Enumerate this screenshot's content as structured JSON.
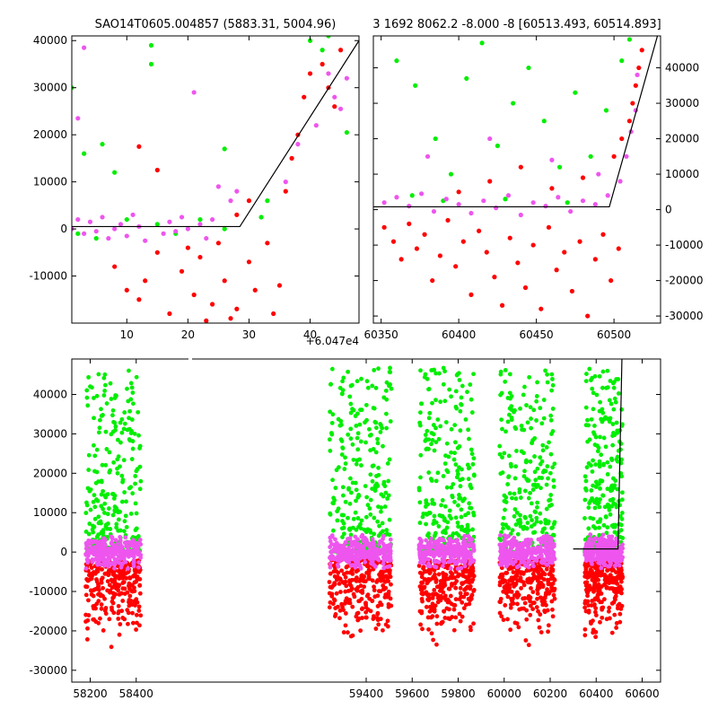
{
  "chart_data": [
    {
      "type": "scatter",
      "title": "SAO14T0605.004857 (5883.31, 5004.96)",
      "xlim": [
        1,
        48
      ],
      "ylim": [
        -20000,
        41000
      ],
      "xticks": [
        "10",
        "20",
        "30",
        "40"
      ],
      "yticks": [
        "-10000",
        "0",
        "10000",
        "20000",
        "30000",
        "40000"
      ],
      "offset_label": "+6.047e4",
      "model_line": {
        "x": [
          1,
          28.5,
          48
        ],
        "y": [
          500,
          500,
          40000
        ]
      },
      "series": [
        {
          "color": "#ff0000",
          "points": [
            [
              8,
              -8000
            ],
            [
              10,
              -13000
            ],
            [
              12,
              -15000
            ],
            [
              13,
              -11000
            ],
            [
              15,
              -5000
            ],
            [
              17,
              -18000
            ],
            [
              19,
              -9000
            ],
            [
              21,
              -14000
            ],
            [
              22,
              -6000
            ],
            [
              24,
              -16000
            ],
            [
              26,
              -11000
            ],
            [
              28,
              -17000
            ],
            [
              30,
              -7000
            ],
            [
              31,
              -13000
            ],
            [
              33,
              -3000
            ],
            [
              35,
              -12000
            ],
            [
              28,
              3000
            ],
            [
              30,
              6000
            ],
            [
              25,
              -3000
            ],
            [
              20,
              -4000
            ],
            [
              36,
              8000
            ],
            [
              37,
              15000
            ],
            [
              38,
              20000
            ],
            [
              39,
              28000
            ],
            [
              40,
              33000
            ],
            [
              42,
              35000
            ],
            [
              43,
              30000
            ],
            [
              44,
              26000
            ],
            [
              45,
              38000
            ],
            [
              12,
              17500
            ],
            [
              15,
              12500
            ],
            [
              34,
              -18000
            ],
            [
              27,
              -19000
            ],
            [
              23,
              -19500
            ]
          ]
        },
        {
          "color": "#00ee00",
          "points": [
            [
              1,
              30000
            ],
            [
              3,
              16000
            ],
            [
              6,
              18000
            ],
            [
              8,
              12000
            ],
            [
              14,
              39000
            ],
            [
              14,
              35000
            ],
            [
              26,
              17000
            ],
            [
              40,
              40000
            ],
            [
              43,
              41000
            ],
            [
              46,
              20500
            ],
            [
              2,
              -1000
            ],
            [
              5,
              -2000
            ],
            [
              10,
              2000
            ],
            [
              15,
              1000
            ],
            [
              18,
              -1000
            ],
            [
              22,
              2000
            ],
            [
              26,
              0
            ],
            [
              32,
              2500
            ],
            [
              33,
              6000
            ],
            [
              42,
              38000
            ]
          ]
        },
        {
          "color": "#ee55ee",
          "points": [
            [
              2,
              23500
            ],
            [
              3,
              38500
            ],
            [
              1,
              0
            ],
            [
              2,
              2000
            ],
            [
              3,
              -1000
            ],
            [
              4,
              1500
            ],
            [
              5,
              -500
            ],
            [
              6,
              2500
            ],
            [
              7,
              -2000
            ],
            [
              8,
              0
            ],
            [
              9,
              1000
            ],
            [
              10,
              -1500
            ],
            [
              11,
              3000
            ],
            [
              12,
              500
            ],
            [
              13,
              -2500
            ],
            [
              16,
              -1000
            ],
            [
              17,
              1500
            ],
            [
              18,
              -500
            ],
            [
              19,
              2500
            ],
            [
              20,
              0
            ],
            [
              21,
              29000
            ],
            [
              22,
              1000
            ],
            [
              23,
              -2000
            ],
            [
              24,
              2000
            ],
            [
              25,
              9000
            ],
            [
              27,
              6000
            ],
            [
              28,
              8000
            ],
            [
              36,
              10000
            ],
            [
              38,
              18000
            ],
            [
              41,
              22000
            ],
            [
              43,
              33000
            ],
            [
              44,
              28000
            ],
            [
              45,
              25500
            ],
            [
              46,
              32000
            ]
          ]
        }
      ]
    },
    {
      "type": "scatter",
      "title": "3 1692 8062.2 -8.000 -8 [60513.493, 60514.893]",
      "xlim": [
        60345,
        60530
      ],
      "ylim": [
        -32000,
        49000
      ],
      "xticks": [
        "60350",
        "60400",
        "60450",
        "60500"
      ],
      "yticks": [
        "-30000",
        "-20000",
        "-10000",
        "0",
        "10000",
        "20000",
        "30000",
        "40000"
      ],
      "model_line": {
        "x": [
          60345,
          60497,
          60528
        ],
        "y": [
          800,
          800,
          49000
        ]
      },
      "series": [
        {
          "color": "#ff0000",
          "points": [
            [
              60352,
              -5000
            ],
            [
              60358,
              -9000
            ],
            [
              60363,
              -14000
            ],
            [
              60368,
              -4000
            ],
            [
              60373,
              -11000
            ],
            [
              60378,
              -7000
            ],
            [
              60383,
              -20000
            ],
            [
              60388,
              -13000
            ],
            [
              60393,
              -3000
            ],
            [
              60398,
              -16000
            ],
            [
              60403,
              -9000
            ],
            [
              60408,
              -24000
            ],
            [
              60413,
              -6000
            ],
            [
              60418,
              -12000
            ],
            [
              60423,
              -19000
            ],
            [
              60428,
              -27000
            ],
            [
              60433,
              -8000
            ],
            [
              60438,
              -15000
            ],
            [
              60443,
              -22000
            ],
            [
              60448,
              -10000
            ],
            [
              60453,
              -28000
            ],
            [
              60458,
              -5000
            ],
            [
              60463,
              -17000
            ],
            [
              60468,
              -12000
            ],
            [
              60473,
              -23000
            ],
            [
              60478,
              -9000
            ],
            [
              60483,
              -30000
            ],
            [
              60488,
              -14000
            ],
            [
              60493,
              -7000
            ],
            [
              60498,
              -20000
            ],
            [
              60503,
              -11000
            ],
            [
              60400,
              5000
            ],
            [
              60420,
              8000
            ],
            [
              60440,
              12000
            ],
            [
              60460,
              6000
            ],
            [
              60480,
              9000
            ],
            [
              60500,
              15000
            ],
            [
              60505,
              20000
            ],
            [
              60510,
              25000
            ],
            [
              60512,
              30000
            ],
            [
              60514,
              35000
            ],
            [
              60516,
              40000
            ],
            [
              60518,
              45000
            ]
          ]
        },
        {
          "color": "#00ee00",
          "points": [
            [
              60360,
              42000
            ],
            [
              60372,
              35000
            ],
            [
              60385,
              20000
            ],
            [
              60395,
              10000
            ],
            [
              60405,
              37000
            ],
            [
              60415,
              47000
            ],
            [
              60425,
              18000
            ],
            [
              60435,
              30000
            ],
            [
              60445,
              40000
            ],
            [
              60455,
              25000
            ],
            [
              60465,
              12000
            ],
            [
              60475,
              33000
            ],
            [
              60485,
              15000
            ],
            [
              60495,
              28000
            ],
            [
              60505,
              42000
            ],
            [
              60370,
              4000
            ],
            [
              60390,
              2500
            ],
            [
              60430,
              3000
            ],
            [
              60470,
              2000
            ],
            [
              60510,
              48000
            ]
          ]
        },
        {
          "color": "#ee55ee",
          "points": [
            [
              60352,
              2000
            ],
            [
              60360,
              3500
            ],
            [
              60368,
              1000
            ],
            [
              60376,
              4500
            ],
            [
              60384,
              -500
            ],
            [
              60392,
              3000
            ],
            [
              60400,
              1500
            ],
            [
              60408,
              -1000
            ],
            [
              60416,
              2500
            ],
            [
              60424,
              500
            ],
            [
              60432,
              4000
            ],
            [
              60440,
              -1500
            ],
            [
              60448,
              2000
            ],
            [
              60456,
              1000
            ],
            [
              60464,
              3500
            ],
            [
              60472,
              -500
            ],
            [
              60480,
              2500
            ],
            [
              60488,
              1500
            ],
            [
              60496,
              4000
            ],
            [
              60504,
              8000
            ],
            [
              60508,
              15000
            ],
            [
              60511,
              22000
            ],
            [
              60514,
              28000
            ],
            [
              60380,
              15000
            ],
            [
              60420,
              20000
            ],
            [
              60460,
              14000
            ],
            [
              60490,
              10000
            ],
            [
              60515,
              38000
            ]
          ]
        }
      ]
    },
    {
      "type": "scatter",
      "title": "",
      "xlim": [
        58120,
        60680
      ],
      "ylim": [
        -33000,
        49000
      ],
      "xticks": [
        "58200",
        "58400",
        "59400",
        "59600",
        "59800",
        "60000",
        "60200",
        "60400",
        "60600"
      ],
      "yticks": [
        "-30000",
        "-20000",
        "-10000",
        "0",
        "10000",
        "20000",
        "30000",
        "40000"
      ],
      "model_line": {
        "x": [
          60300,
          60495,
          60512
        ],
        "y": [
          800,
          800,
          49000
        ]
      },
      "season_ranges": [
        [
          58180,
          58420
        ],
        [
          59240,
          59510
        ],
        [
          59630,
          59870
        ],
        [
          59980,
          60220
        ],
        [
          60350,
          60515
        ]
      ],
      "series": [
        {
          "color": "#ff0000",
          "spread": [
            -26000,
            6000
          ],
          "tail_count": 70
        },
        {
          "color": "#00ee00",
          "spread": [
            0,
            47000
          ],
          "tail_count": 30
        },
        {
          "color": "#ee55ee",
          "spread": [
            -5000,
            8000
          ],
          "tail_count": 90
        }
      ]
    }
  ]
}
